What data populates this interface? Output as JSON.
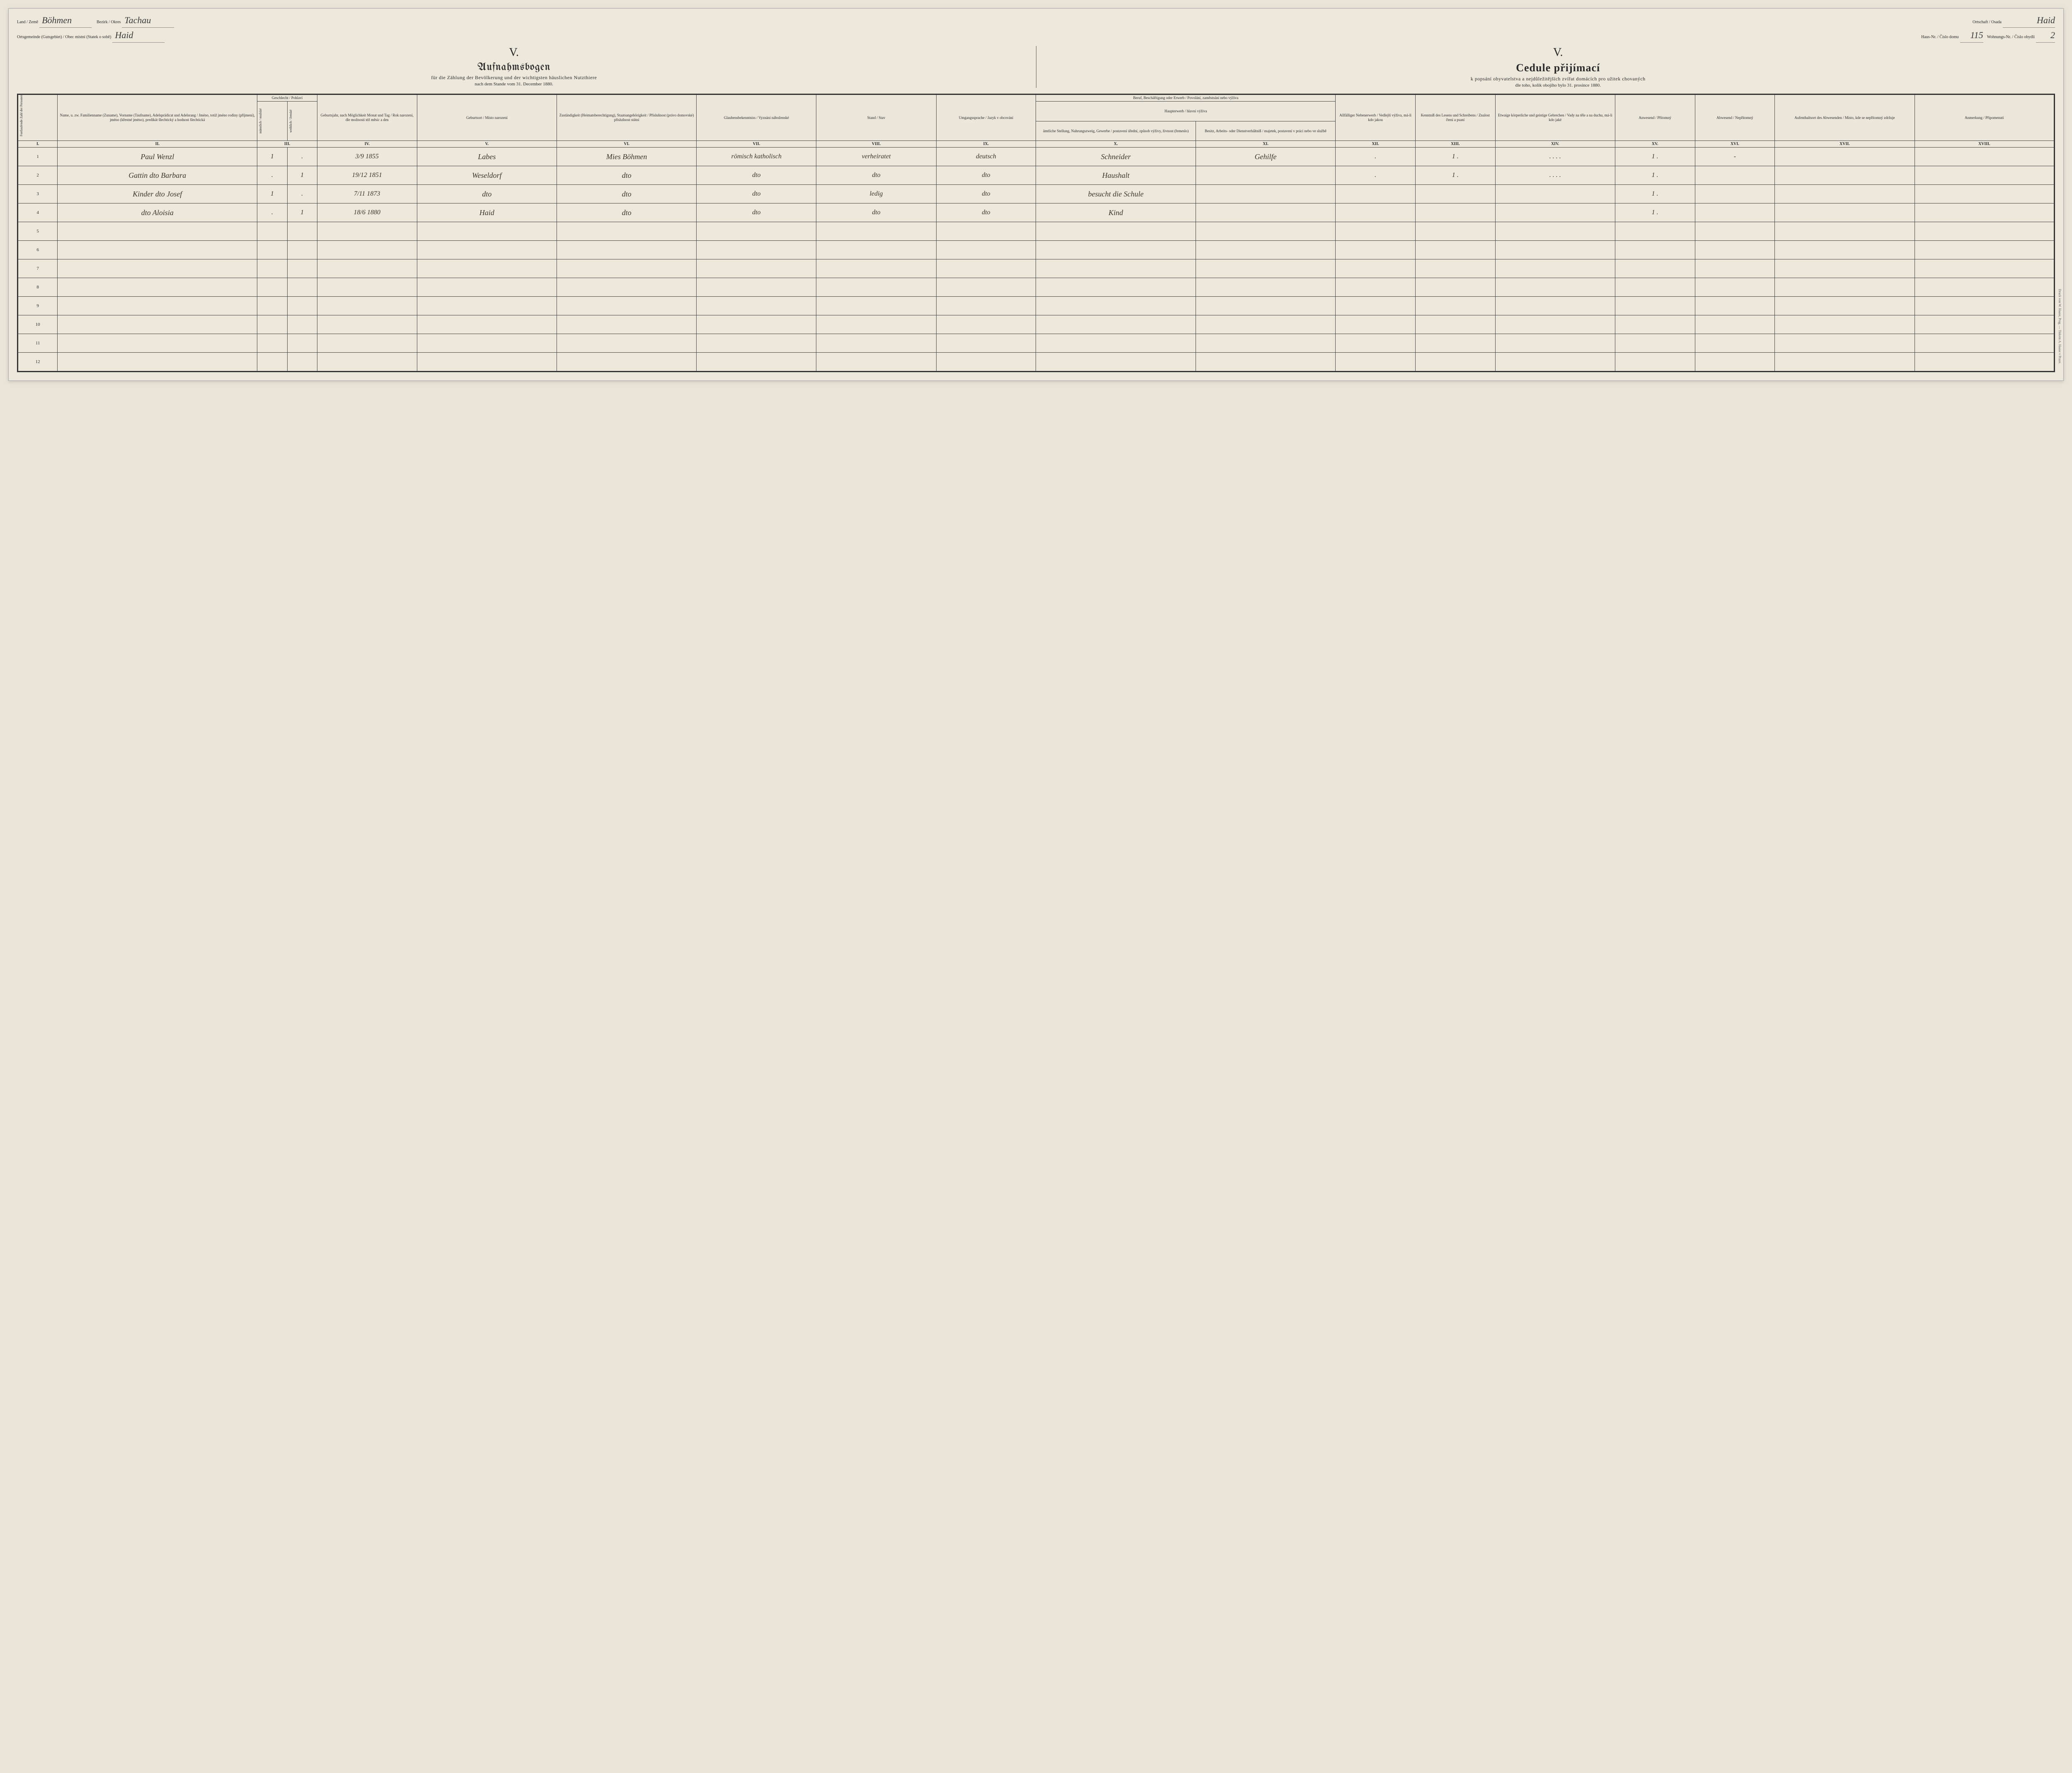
{
  "header": {
    "land_label": "Land / Země",
    "land_value": "Böhmen",
    "bezirk_label": "Bezirk / Okres",
    "bezirk_value": "Tachau",
    "ortsgemeinde_label": "Ortsgemeinde (Gutsgebiet) / Obec místní (Statek o sobě)",
    "ortsgemeinde_value": "Haid",
    "ortschaft_label": "Ortschaft / Osada",
    "ortschaft_value": "Haid",
    "hausnr_label": "Haus-Nr. / Číslo domu",
    "hausnr_value": "115",
    "wohnnr_label": "Wohnungs-Nr. / Číslo obydlí",
    "wohnnr_value": "2"
  },
  "titles": {
    "roman": "V.",
    "left_main": "Aufnahmsbogen",
    "left_sub": "für die Zählung der Bevölkerung und der wichtigsten häuslichen Nutzthiere",
    "left_date": "nach dem Stande vom 31. December 1880.",
    "right_main": "Cedule přijímací",
    "right_sub": "k popsání obyvatelstva a nejdůležitějších zvířat domácích pro užitek chovaných",
    "right_date": "dle toho, kolik obojího bylo 31. prosince 1880."
  },
  "columns": {
    "I": "Fortlaufende Zahl der Personen / Pořadí jednotl. číslo osob",
    "II": "Name, u. zw. Familienname (Zuname), Vorname (Taufname), Adelsprädicat und Adelsrang / Jméno, totiž jméno rodiny (příjmení), jméno (křestné jméno), predikát šlechtický a hodnost šlechtická",
    "III": "Geschlecht / Pohlaví",
    "III_m": "männlich / mužské",
    "III_f": "weiblich / ženské",
    "IV": "Geburtsjahr, nach Möglichkeit Monat und Tag / Rok narození, dle možnosti též měsíc a den",
    "V": "Geburtsort / Místo narození",
    "VI": "Zuständigkeit (Heimatsberechtigung), Staatsangehörigkeit / Příslušnost (právo domovské) příslušnost státní",
    "VII": "Glaubensbekenntniss / Vyznání náboženské",
    "VIII": "Stand / Stav",
    "IX": "Umgangssprache / Jazyk v obcování",
    "X_XI_top": "Beruf, Beschäftigung oder Erwerb / Povolání, zaměstnání nebo výživa",
    "X_XI_sub": "Haupterwerb / hlavní výživa",
    "X": "ämtliche Stellung, Nahrungszweig, Gewerbe / postavení úřední, způsob výživy, živnost (řemeslo)",
    "XI": "Besitz, Arbeits- oder Dienstverhältniß / majetek, postavení v práci nebo ve službě",
    "XII": "Allfälliger Nebenerwerb / Vedlejší výživa, má-li kdo jakou",
    "XIII": "Kenntniß des Lesens und Schreibens / Znalost čtení a psaní",
    "XIV": "Etwaige körperliche und geistige Gebrechen / Vady na těle a na duchu, má-li kdo jaké",
    "XV": "Anwesend / Přítomný",
    "XVI": "Abwesend / Nepřítomný",
    "XVII": "Aufenthaltsort des Abwesenden / Místo, kde se nepřítomný zdržuje",
    "XVIII": "Anmerkung / Připomenutí"
  },
  "roman_row": [
    "I.",
    "II.",
    "III.",
    "IV.",
    "V.",
    "VI.",
    "VII.",
    "VIII.",
    "IX.",
    "X.",
    "XI.",
    "XII.",
    "XIII.",
    "XIV.",
    "XV.",
    "XVI.",
    "XVII.",
    "XVIII."
  ],
  "rows": [
    {
      "n": "1",
      "name": "Paul Wenzl",
      "m": "1",
      "f": ".",
      "dob": "3/9 1855",
      "birthplace": "Labes",
      "zust": "Mies Böhmen",
      "rel": "römisch katholisch",
      "stand": "verheiratet",
      "lang": "deutsch",
      "occ": "Schneider",
      "rel2": "Gehilfe",
      "xii": ".",
      "xiii": "1 .",
      "xiv": ". . . .",
      "xv": "1 .",
      "xvi": "-",
      "xvii": "",
      "xviii": ""
    },
    {
      "n": "2",
      "name": "Gattin dto Barbara",
      "m": ".",
      "f": "1",
      "dob": "19/12 1851",
      "birthplace": "Weseldorf",
      "zust": "dto",
      "rel": "dto",
      "stand": "dto",
      "lang": "dto",
      "occ": "Haushalt",
      "rel2": "",
      "xii": ".",
      "xiii": "1 .",
      "xiv": ". . . .",
      "xv": "1 .",
      "xvi": "",
      "xvii": "",
      "xviii": ""
    },
    {
      "n": "3",
      "name": "Kinder dto Josef",
      "m": "1",
      "f": ".",
      "dob": "7/11 1873",
      "birthplace": "dto",
      "zust": "dto",
      "rel": "dto",
      "stand": "ledig",
      "lang": "dto",
      "occ": "besucht die Schule",
      "rel2": "",
      "xii": "",
      "xiii": "",
      "xiv": "",
      "xv": "1 .",
      "xvi": "",
      "xvii": "",
      "xviii": ""
    },
    {
      "n": "4",
      "name": "dto Aloisia",
      "m": ".",
      "f": "1",
      "dob": "18/6 1880",
      "birthplace": "Haid",
      "zust": "dto",
      "rel": "dto",
      "stand": "dto",
      "lang": "dto",
      "occ": "Kind",
      "rel2": "",
      "xii": "",
      "xiii": "",
      "xiv": "",
      "xv": "1 .",
      "xvi": "",
      "xvii": "",
      "xviii": ""
    },
    {
      "n": "5"
    },
    {
      "n": "6"
    },
    {
      "n": "7"
    },
    {
      "n": "8"
    },
    {
      "n": "9"
    },
    {
      "n": "10"
    },
    {
      "n": "11"
    },
    {
      "n": "12"
    }
  ],
  "side_credit": "Druck von W. Haase, Prag. — Tiskem A. Haase v Praze."
}
